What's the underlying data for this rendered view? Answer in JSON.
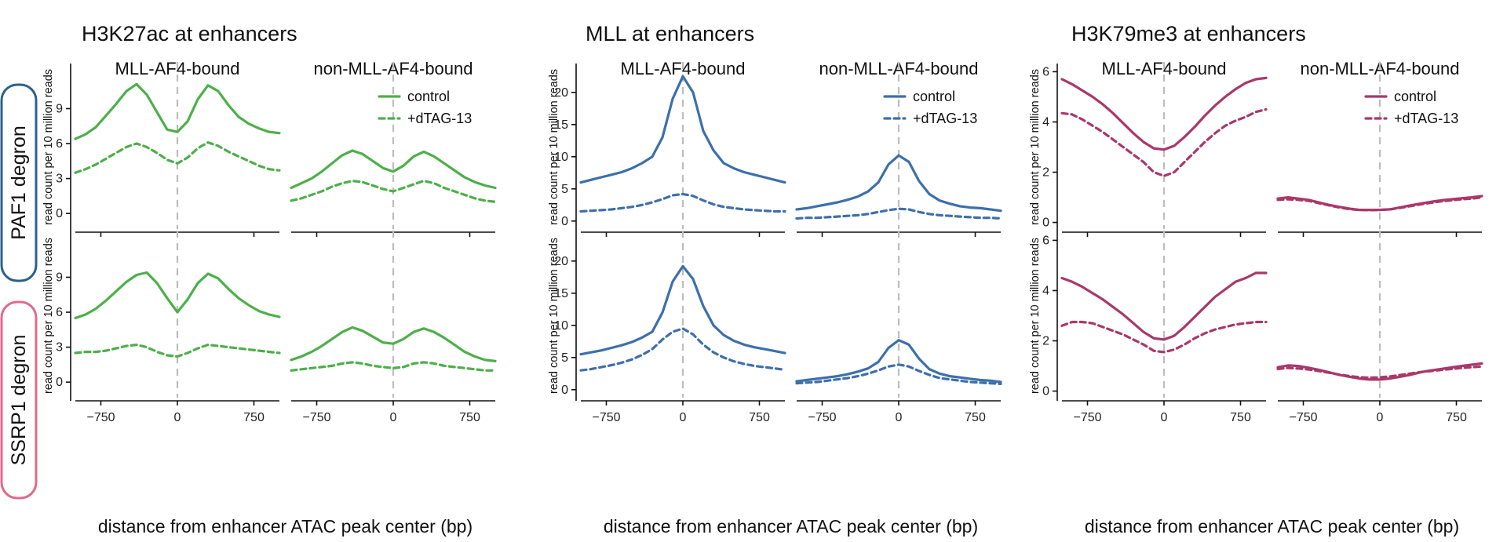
{
  "figure": {
    "groups": [
      {
        "title": "H3K27ac at enhancers",
        "color": "#4daf4a"
      },
      {
        "title": "MLL at enhancers",
        "color": "#3d6fab"
      },
      {
        "title": "H3K79me3 at enhancers",
        "color": "#a9386a"
      }
    ],
    "rows": [
      {
        "label": "PAF1 degron",
        "color": "#2f5f8a"
      },
      {
        "label": "SSRP1 degron",
        "color": "#e06a8c"
      }
    ],
    "facet_titles": [
      "MLL-AF4-bound",
      "non-MLL-AF4-bound"
    ],
    "ylabel": "read count per 10 million reads",
    "xlabel": "distance from enhancer ATAC peak center (bp)",
    "legend": {
      "control": "control",
      "treated": "+dTAG-13"
    }
  },
  "chart_data": [
    {
      "type": "line",
      "title": "H3K27ac at enhancers",
      "xlim": [
        -1000,
        1000
      ],
      "xticks": [
        -750,
        0,
        750
      ],
      "ylim": [
        -1.2,
        12.6
      ],
      "yticks": [
        0,
        3,
        6,
        9
      ],
      "x": [
        -1000,
        -900,
        -800,
        -700,
        -600,
        -500,
        -400,
        -300,
        -200,
        -100,
        0,
        100,
        200,
        300,
        400,
        500,
        600,
        700,
        800,
        900,
        1000
      ],
      "panels": [
        {
          "row": "PAF1 degron",
          "facet": "MLL-AF4-bound",
          "series": [
            {
              "name": "control",
              "values": [
                6.4,
                6.8,
                7.4,
                8.4,
                9.4,
                10.5,
                11.1,
                10.2,
                8.7,
                7.2,
                7.0,
                7.9,
                9.8,
                11.0,
                10.5,
                9.3,
                8.3,
                7.7,
                7.3,
                7.0,
                6.9
              ]
            },
            {
              "name": "+dTAG-13",
              "values": [
                3.5,
                3.8,
                4.2,
                4.7,
                5.2,
                5.7,
                6.0,
                5.7,
                5.2,
                4.6,
                4.3,
                4.8,
                5.6,
                6.1,
                5.8,
                5.3,
                4.9,
                4.5,
                4.1,
                3.8,
                3.7
              ]
            }
          ]
        },
        {
          "row": "PAF1 degron",
          "facet": "non-MLL-AF4-bound",
          "series": [
            {
              "name": "control",
              "values": [
                2.2,
                2.6,
                3.0,
                3.6,
                4.3,
                5.0,
                5.4,
                5.1,
                4.5,
                3.9,
                3.6,
                4.1,
                4.9,
                5.3,
                4.9,
                4.3,
                3.7,
                3.1,
                2.7,
                2.4,
                2.2
              ]
            },
            {
              "name": "+dTAG-13",
              "values": [
                1.1,
                1.3,
                1.6,
                1.9,
                2.3,
                2.6,
                2.8,
                2.7,
                2.4,
                2.1,
                1.9,
                2.2,
                2.5,
                2.8,
                2.6,
                2.2,
                1.9,
                1.6,
                1.3,
                1.1,
                1.0
              ]
            }
          ]
        },
        {
          "row": "SSRP1 degron",
          "facet": "MLL-AF4-bound",
          "series": [
            {
              "name": "control",
              "values": [
                5.5,
                5.8,
                6.3,
                7.0,
                7.8,
                8.6,
                9.2,
                9.4,
                8.5,
                7.2,
                6.0,
                7.1,
                8.5,
                9.3,
                8.9,
                8.0,
                7.2,
                6.6,
                6.1,
                5.8,
                5.6
              ]
            },
            {
              "name": "+dTAG-13",
              "values": [
                2.5,
                2.6,
                2.6,
                2.7,
                2.9,
                3.1,
                3.2,
                3.0,
                2.6,
                2.3,
                2.2,
                2.5,
                2.9,
                3.2,
                3.1,
                3.0,
                2.9,
                2.8,
                2.7,
                2.6,
                2.5
              ]
            }
          ]
        },
        {
          "row": "SSRP1 degron",
          "facet": "non-MLL-AF4-bound",
          "series": [
            {
              "name": "control",
              "values": [
                1.9,
                2.2,
                2.6,
                3.1,
                3.7,
                4.3,
                4.7,
                4.4,
                3.9,
                3.4,
                3.3,
                3.7,
                4.3,
                4.6,
                4.3,
                3.8,
                3.2,
                2.6,
                2.2,
                1.9,
                1.8
              ]
            },
            {
              "name": "+dTAG-13",
              "values": [
                1.0,
                1.1,
                1.2,
                1.3,
                1.4,
                1.6,
                1.7,
                1.6,
                1.4,
                1.3,
                1.2,
                1.3,
                1.6,
                1.7,
                1.6,
                1.4,
                1.3,
                1.2,
                1.1,
                1.0,
                1.0
              ]
            }
          ]
        }
      ]
    },
    {
      "type": "line",
      "title": "MLL at enhancers",
      "xlim": [
        -1000,
        1000
      ],
      "xticks": [
        -750,
        0,
        750
      ],
      "ylim": [
        -1.0,
        24.0
      ],
      "yticks": [
        0,
        5,
        10,
        15,
        20
      ],
      "x": [
        -1000,
        -900,
        -800,
        -700,
        -600,
        -500,
        -400,
        -300,
        -200,
        -100,
        0,
        100,
        200,
        300,
        400,
        500,
        600,
        700,
        800,
        900,
        1000
      ],
      "panels": [
        {
          "row": "PAF1 degron",
          "facet": "MLL-AF4-bound",
          "series": [
            {
              "name": "control",
              "values": [
                6.0,
                6.4,
                6.8,
                7.2,
                7.6,
                8.2,
                9.0,
                10.0,
                13.0,
                19.0,
                22.5,
                20.0,
                14.0,
                11.0,
                9.0,
                8.2,
                7.6,
                7.2,
                6.8,
                6.4,
                6.0
              ]
            },
            {
              "name": "+dTAG-13",
              "values": [
                1.5,
                1.6,
                1.7,
                1.8,
                2.0,
                2.2,
                2.5,
                2.9,
                3.4,
                4.0,
                4.2,
                3.9,
                3.2,
                2.6,
                2.2,
                2.0,
                1.8,
                1.7,
                1.6,
                1.5,
                1.5
              ]
            }
          ]
        },
        {
          "row": "PAF1 degron",
          "facet": "non-MLL-AF4-bound",
          "series": [
            {
              "name": "control",
              "values": [
                1.8,
                2.0,
                2.3,
                2.6,
                2.9,
                3.3,
                3.8,
                4.6,
                6.0,
                8.8,
                10.2,
                9.2,
                6.2,
                4.2,
                3.2,
                2.7,
                2.3,
                2.1,
                2.0,
                1.8,
                1.6
              ]
            },
            {
              "name": "+dTAG-13",
              "values": [
                0.4,
                0.5,
                0.5,
                0.6,
                0.7,
                0.8,
                0.9,
                1.1,
                1.4,
                1.7,
                1.9,
                1.8,
                1.4,
                1.1,
                0.9,
                0.8,
                0.7,
                0.6,
                0.5,
                0.5,
                0.4
              ]
            }
          ]
        },
        {
          "row": "SSRP1 degron",
          "facet": "MLL-AF4-bound",
          "series": [
            {
              "name": "control",
              "values": [
                5.5,
                5.8,
                6.1,
                6.5,
                6.9,
                7.4,
                8.1,
                9.0,
                12.0,
                16.8,
                19.2,
                17.2,
                13.0,
                10.0,
                8.5,
                7.6,
                7.0,
                6.6,
                6.3,
                6.0,
                5.7
              ]
            },
            {
              "name": "+dTAG-13",
              "values": [
                3.0,
                3.2,
                3.5,
                3.8,
                4.2,
                4.7,
                5.4,
                6.3,
                7.8,
                9.0,
                9.5,
                8.6,
                7.0,
                5.8,
                5.0,
                4.4,
                4.0,
                3.7,
                3.5,
                3.3,
                3.1
              ]
            }
          ]
        },
        {
          "row": "SSRP1 degron",
          "facet": "non-MLL-AF4-bound",
          "series": [
            {
              "name": "control",
              "values": [
                1.3,
                1.5,
                1.7,
                1.9,
                2.1,
                2.4,
                2.8,
                3.3,
                4.3,
                6.5,
                7.7,
                7.0,
                4.8,
                3.2,
                2.5,
                2.1,
                1.9,
                1.7,
                1.5,
                1.4,
                1.2
              ]
            },
            {
              "name": "+dTAG-13",
              "values": [
                1.0,
                1.1,
                1.2,
                1.4,
                1.6,
                1.8,
                2.1,
                2.5,
                3.0,
                3.6,
                3.9,
                3.6,
                2.9,
                2.3,
                1.8,
                1.6,
                1.4,
                1.2,
                1.1,
                1.0,
                0.9
              ]
            }
          ]
        }
      ]
    },
    {
      "type": "line",
      "title": "H3K79me3 at enhancers",
      "xlim": [
        -1000,
        1000
      ],
      "xticks": [
        -750,
        0,
        750
      ],
      "ylim": [
        -0.2,
        6.2
      ],
      "yticks": [
        0,
        2,
        4,
        6
      ],
      "x": [
        -1000,
        -900,
        -800,
        -700,
        -600,
        -500,
        -400,
        -300,
        -200,
        -100,
        0,
        100,
        200,
        300,
        400,
        500,
        600,
        700,
        800,
        900,
        1000
      ],
      "panels": [
        {
          "row": "PAF1 degron",
          "facet": "MLL-AF4-bound",
          "series": [
            {
              "name": "control",
              "values": [
                5.7,
                5.5,
                5.25,
                5.0,
                4.7,
                4.35,
                3.95,
                3.55,
                3.2,
                2.95,
                2.9,
                3.05,
                3.4,
                3.8,
                4.25,
                4.65,
                5.0,
                5.3,
                5.55,
                5.7,
                5.75
              ]
            },
            {
              "name": "+dTAG-13",
              "values": [
                4.35,
                4.3,
                4.1,
                3.85,
                3.6,
                3.3,
                3.0,
                2.7,
                2.4,
                2.0,
                1.85,
                2.0,
                2.4,
                2.8,
                3.2,
                3.55,
                3.85,
                4.05,
                4.2,
                4.4,
                4.5
              ]
            }
          ]
        },
        {
          "row": "PAF1 degron",
          "facet": "non-MLL-AF4-bound",
          "series": [
            {
              "name": "control",
              "values": [
                0.95,
                1.0,
                0.95,
                0.9,
                0.8,
                0.7,
                0.62,
                0.55,
                0.5,
                0.5,
                0.5,
                0.52,
                0.6,
                0.68,
                0.75,
                0.82,
                0.88,
                0.92,
                0.96,
                1.0,
                1.05
              ]
            },
            {
              "name": "+dTAG-13",
              "values": [
                0.9,
                0.92,
                0.9,
                0.86,
                0.77,
                0.68,
                0.6,
                0.53,
                0.5,
                0.49,
                0.5,
                0.52,
                0.58,
                0.65,
                0.72,
                0.78,
                0.84,
                0.88,
                0.92,
                0.95,
                1.0
              ]
            }
          ]
        },
        {
          "row": "SSRP1 degron",
          "facet": "MLL-AF4-bound",
          "series": [
            {
              "name": "control",
              "values": [
                4.5,
                4.35,
                4.15,
                3.9,
                3.65,
                3.35,
                3.05,
                2.7,
                2.35,
                2.1,
                2.05,
                2.2,
                2.55,
                2.95,
                3.35,
                3.75,
                4.05,
                4.35,
                4.5,
                4.7,
                4.7
              ]
            },
            {
              "name": "+dTAG-13",
              "values": [
                2.6,
                2.75,
                2.75,
                2.7,
                2.55,
                2.4,
                2.25,
                2.05,
                1.85,
                1.6,
                1.55,
                1.65,
                1.85,
                2.1,
                2.3,
                2.45,
                2.55,
                2.65,
                2.7,
                2.75,
                2.75
              ]
            }
          ]
        },
        {
          "row": "SSRP1 degron",
          "facet": "non-MLL-AF4-bound",
          "series": [
            {
              "name": "control",
              "values": [
                0.95,
                1.02,
                1.0,
                0.93,
                0.85,
                0.75,
                0.65,
                0.57,
                0.5,
                0.46,
                0.46,
                0.5,
                0.57,
                0.65,
                0.75,
                0.82,
                0.88,
                0.94,
                1.0,
                1.05,
                1.1
              ]
            },
            {
              "name": "+dTAG-13",
              "values": [
                0.88,
                0.92,
                0.9,
                0.86,
                0.8,
                0.73,
                0.66,
                0.6,
                0.55,
                0.53,
                0.55,
                0.58,
                0.64,
                0.7,
                0.76,
                0.8,
                0.84,
                0.88,
                0.92,
                0.95,
                0.98
              ]
            }
          ]
        }
      ]
    }
  ]
}
